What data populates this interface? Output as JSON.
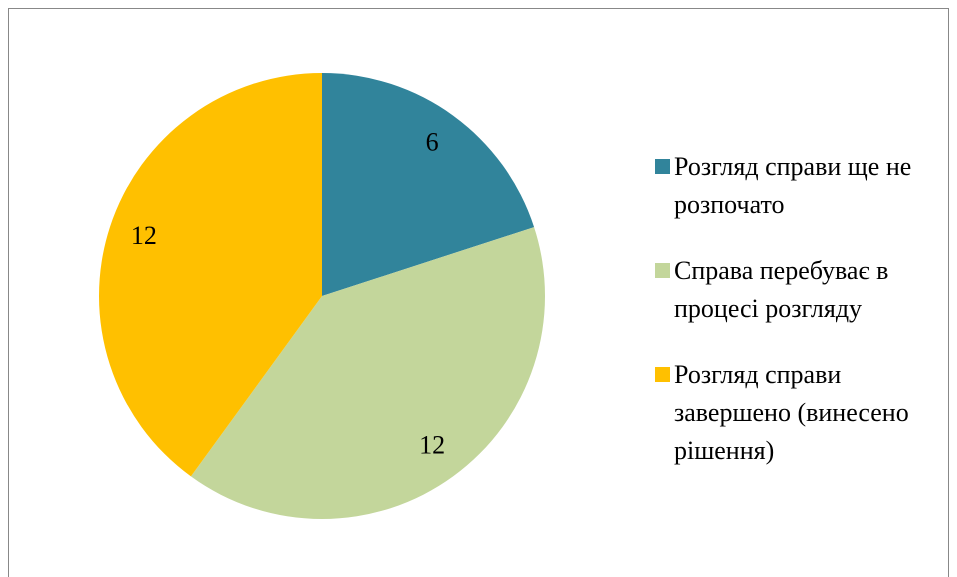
{
  "chart_data": {
    "type": "pie",
    "categories": [
      "Розгляд справи ще не розпочато",
      "Справа перебуває в процесі розгляду",
      "Розгляд справи завершено (винесено рішення)"
    ],
    "values": [
      6,
      12,
      12
    ],
    "colors": [
      "#31849b",
      "#c3d69b",
      "#ffc000"
    ],
    "legend": "right"
  }
}
